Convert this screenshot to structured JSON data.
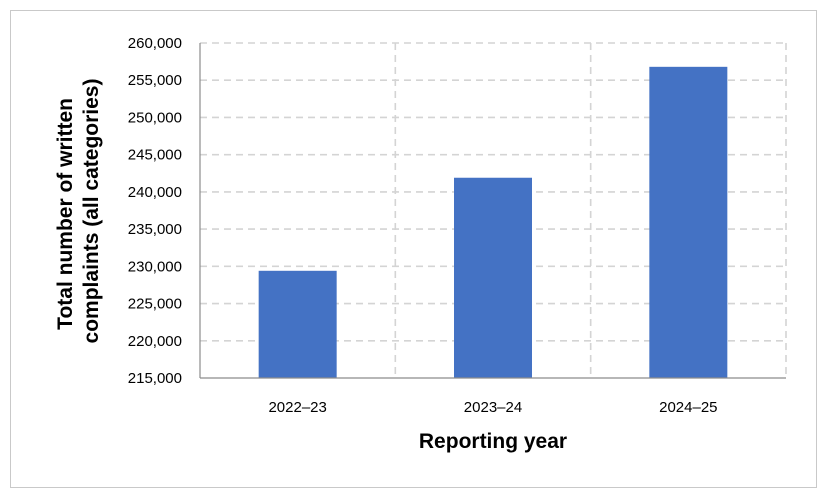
{
  "chart_data": {
    "type": "bar",
    "title": "",
    "categories": [
      "2022–23",
      "2023–24",
      "2024–25"
    ],
    "values": [
      229400,
      241900,
      256800
    ],
    "xlabel": "Reporting year",
    "ylabel_lines": [
      "Total number of written",
      "complaints (all categories)"
    ],
    "ylim": [
      215000,
      260000
    ],
    "yticks": [
      215000,
      220000,
      225000,
      230000,
      235000,
      240000,
      245000,
      250000,
      255000,
      260000
    ],
    "ytick_labels": [
      "215,000",
      "220,000",
      "225,000",
      "230,000",
      "235,000",
      "240,000",
      "245,000",
      "250,000",
      "255,000",
      "260,000"
    ],
    "bar_color": "#4472C4",
    "grid": true,
    "gridline_color": "#d4d4d4",
    "legend": "none"
  }
}
